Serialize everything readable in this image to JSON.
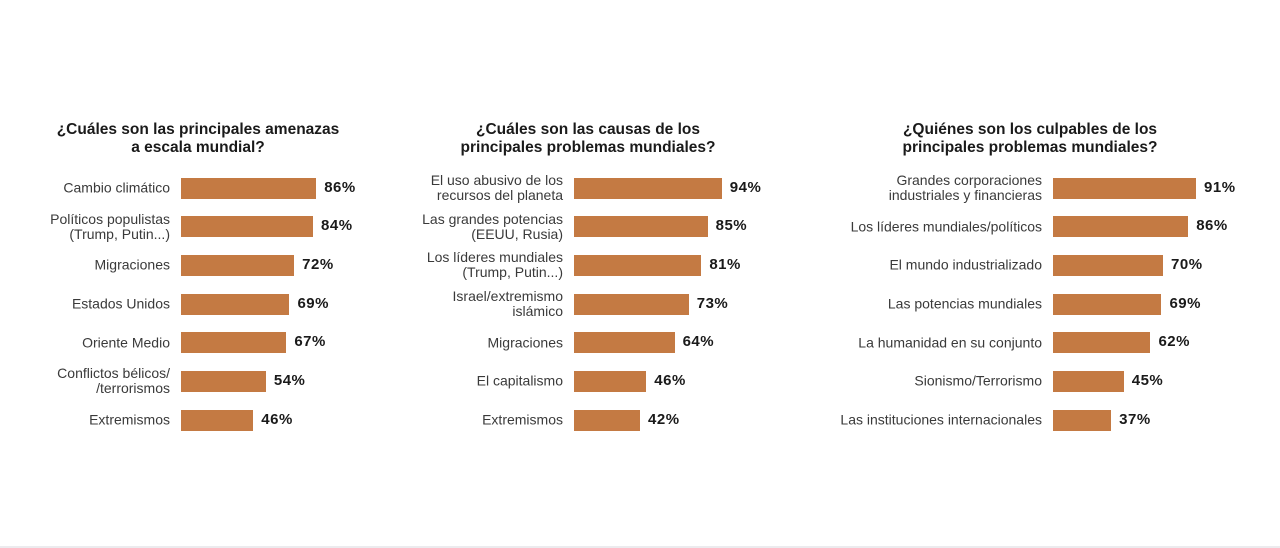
{
  "colors": {
    "bar": "#C47A43",
    "text": "#1a1a1a",
    "label": "#3a3a3a"
  },
  "chart_data": [
    {
      "type": "bar",
      "orientation": "horizontal",
      "title": "¿Cuáles son las principales amenazas a escala mundial?",
      "title_lines": [
        "¿Cuáles son las principales amenazas",
        "a escala mundial?"
      ],
      "categories": [
        "Cambio climático",
        "Políticos populistas (Trump, Putin...)",
        "Migraciones",
        "Estados Unidos",
        "Oriente Medio",
        "Conflictos bélicos/ /terrorismos",
        "Extremismos"
      ],
      "category_lines": [
        [
          "Cambio climático"
        ],
        [
          "Políticos populistas",
          "(Trump, Putin...)"
        ],
        [
          "Migraciones"
        ],
        [
          "Estados Unidos"
        ],
        [
          "Oriente Medio"
        ],
        [
          "Conflictos bélicos/",
          "/terrorismos"
        ],
        [
          "Extremismos"
        ]
      ],
      "values": [
        86,
        84,
        72,
        69,
        67,
        54,
        46
      ],
      "value_labels": [
        "86%",
        "84%",
        "72%",
        "69%",
        "67%",
        "54%",
        "46%"
      ],
      "unit": "%",
      "xlim": [
        0,
        100
      ],
      "grid": false,
      "legend": "none"
    },
    {
      "type": "bar",
      "orientation": "horizontal",
      "title": "¿Cuáles son las causas de los principales problemas mundiales?",
      "title_lines": [
        "¿Cuáles son las causas de los",
        "principales problemas mundiales?"
      ],
      "categories": [
        "El uso abusivo de los recursos del planeta",
        "Las grandes potencias (EEUU, Rusia)",
        "Los líderes mundiales (Trump, Putin...)",
        "Israel/extremismo islámico",
        "Migraciones",
        "El capitalismo",
        "Extremismos"
      ],
      "category_lines": [
        [
          "El uso abusivo de los",
          "recursos del planeta"
        ],
        [
          "Las grandes potencias",
          "(EEUU, Rusia)"
        ],
        [
          "Los líderes mundiales",
          "(Trump, Putin...)"
        ],
        [
          "Israel/extremismo",
          "islámico"
        ],
        [
          "Migraciones"
        ],
        [
          "El capitalismo"
        ],
        [
          "Extremismos"
        ]
      ],
      "values": [
        94,
        85,
        81,
        73,
        64,
        46,
        42
      ],
      "value_labels": [
        "94%",
        "85%",
        "81%",
        "73%",
        "64%",
        "46%",
        "42%"
      ],
      "unit": "%",
      "xlim": [
        0,
        100
      ],
      "grid": false,
      "legend": "none"
    },
    {
      "type": "bar",
      "orientation": "horizontal",
      "title": "¿Quiénes son los culpables de los principales problemas mundiales?",
      "title_lines": [
        "¿Quiénes son los culpables de los",
        "principales problemas mundiales?"
      ],
      "categories": [
        "Grandes corporaciones industriales y financieras",
        "Los líderes mundiales/políticos",
        "El mundo industrializado",
        "Las potencias mundiales",
        "La humanidad en su conjunto",
        "Sionismo/Terrorismo",
        "Las instituciones internacionales"
      ],
      "category_lines": [
        [
          "Grandes corporaciones",
          "industriales y financieras"
        ],
        [
          "Los líderes mundiales/políticos"
        ],
        [
          "El mundo industrializado"
        ],
        [
          "Las potencias mundiales"
        ],
        [
          "La humanidad en su conjunto"
        ],
        [
          "Sionismo/Terrorismo"
        ],
        [
          "Las instituciones internacionales"
        ]
      ],
      "values": [
        91,
        86,
        70,
        69,
        62,
        45,
        37
      ],
      "value_labels": [
        "91%",
        "86%",
        "70%",
        "69%",
        "62%",
        "45%",
        "37%"
      ],
      "unit": "%",
      "xlim": [
        0,
        100
      ],
      "grid": false,
      "legend": "none"
    }
  ]
}
